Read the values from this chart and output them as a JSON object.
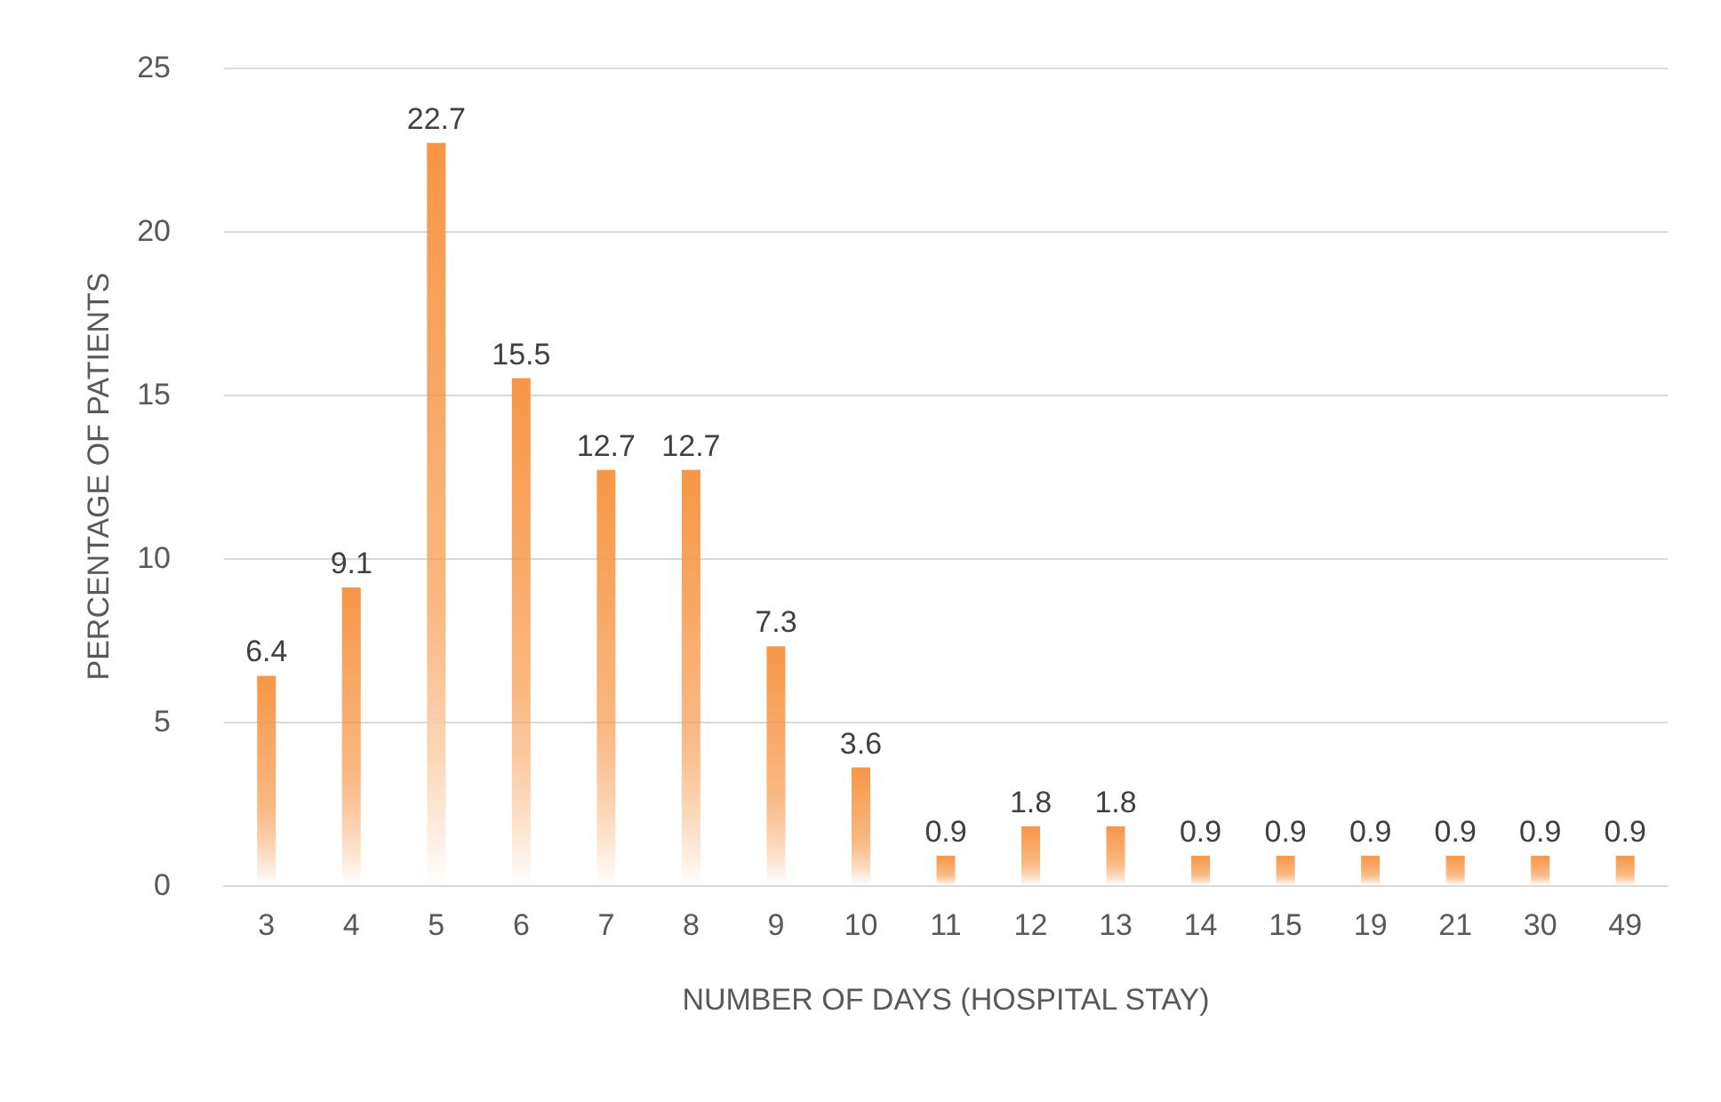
{
  "chart_data": {
    "type": "bar",
    "xlabel": "NUMBER OF DAYS (HOSPITAL STAY)",
    "ylabel": "PERCENTAGE OF PATIENTS",
    "categories": [
      "3",
      "4",
      "5",
      "6",
      "7",
      "8",
      "9",
      "10",
      "11",
      "12",
      "13",
      "14",
      "15",
      "19",
      "21",
      "30",
      "49"
    ],
    "values": [
      6.4,
      9.1,
      22.7,
      15.5,
      12.7,
      12.7,
      7.3,
      3.6,
      0.9,
      1.8,
      1.8,
      0.9,
      0.9,
      0.9,
      0.9,
      0.9,
      0.9
    ],
    "color": "#f79646",
    "ylim": [
      0,
      25
    ],
    "yticks": [
      0,
      5,
      10,
      15,
      20,
      25
    ],
    "grid": "y",
    "data_labels": true
  }
}
